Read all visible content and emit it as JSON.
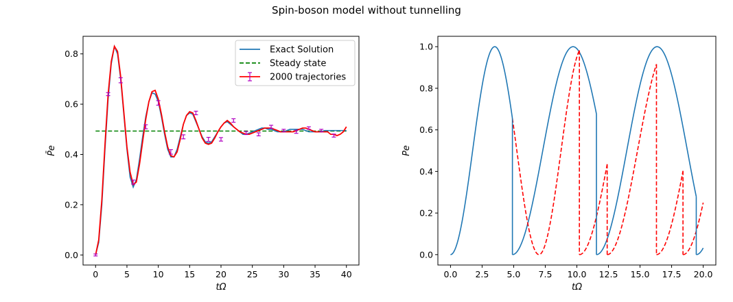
{
  "figure": {
    "title": "Spin-boson model without tunnelling"
  },
  "chart_data": [
    {
      "type": "line",
      "xlabel": "tΩ",
      "ylabel": "P̄e",
      "xlim": [
        -2,
        42
      ],
      "ylim": [
        -0.04,
        0.87
      ],
      "xticks": [
        0,
        5,
        10,
        15,
        20,
        25,
        30,
        35,
        40
      ],
      "yticks": [
        0.0,
        0.2,
        0.4,
        0.6,
        0.8
      ],
      "grid": false,
      "legend_position": "top-right",
      "series": [
        {
          "name": "Exact Solution",
          "style": "solid",
          "color": "#1f77b4",
          "x": [
            0,
            0.5,
            1,
            1.5,
            2,
            2.5,
            3,
            3.5,
            4,
            4.5,
            5,
            5.5,
            6,
            6.5,
            7,
            7.5,
            8,
            8.5,
            9,
            9.5,
            10,
            10.5,
            11,
            11.5,
            12,
            12.5,
            13,
            13.5,
            14,
            14.5,
            15,
            15.5,
            16,
            16.5,
            17,
            17.5,
            18,
            18.5,
            19,
            19.5,
            20,
            20.5,
            21,
            21.5,
            22,
            22.5,
            23,
            23.5,
            24,
            24.5,
            25,
            25.5,
            26,
            26.5,
            27,
            27.5,
            28,
            28.5,
            29,
            29.5,
            30,
            30.5,
            31,
            31.5,
            32,
            32.5,
            33,
            33.5,
            34,
            34.5,
            35,
            35.5,
            36,
            36.5,
            37,
            37.5,
            38,
            38.5,
            39,
            39.5,
            40
          ],
          "y": [
            0.0,
            0.05,
            0.2,
            0.42,
            0.62,
            0.76,
            0.83,
            0.8,
            0.7,
            0.56,
            0.42,
            0.31,
            0.27,
            0.3,
            0.38,
            0.47,
            0.55,
            0.61,
            0.645,
            0.64,
            0.61,
            0.55,
            0.48,
            0.42,
            0.39,
            0.39,
            0.42,
            0.47,
            0.52,
            0.555,
            0.565,
            0.56,
            0.53,
            0.5,
            0.47,
            0.45,
            0.445,
            0.45,
            0.47,
            0.49,
            0.51,
            0.525,
            0.53,
            0.52,
            0.51,
            0.5,
            0.49,
            0.48,
            0.48,
            0.485,
            0.49,
            0.495,
            0.5,
            0.505,
            0.505,
            0.5,
            0.5,
            0.495,
            0.49,
            0.49,
            0.49,
            0.495,
            0.5,
            0.5,
            0.5,
            0.5,
            0.5,
            0.495,
            0.49,
            0.49,
            0.49,
            0.49,
            0.49,
            0.495,
            0.495,
            0.495,
            0.495,
            0.495,
            0.495,
            0.495,
            0.495
          ]
        },
        {
          "name": "Steady state",
          "style": "dashed",
          "color": "#008000",
          "x": [
            0,
            40
          ],
          "y": [
            0.493,
            0.493
          ]
        },
        {
          "name": "2000 trajectories",
          "style": "solid",
          "color": "#ff0000",
          "errorbar_color": "#b000c0",
          "x": [
            0,
            0.5,
            1,
            1.5,
            2,
            2.5,
            3,
            3.5,
            4,
            4.5,
            5,
            5.5,
            6,
            6.5,
            7,
            7.5,
            8,
            8.5,
            9,
            9.5,
            10,
            10.5,
            11,
            11.5,
            12,
            12.5,
            13,
            13.5,
            14,
            14.5,
            15,
            15.5,
            16,
            16.5,
            17,
            17.5,
            18,
            18.5,
            19,
            19.5,
            20,
            20.5,
            21,
            21.5,
            22,
            22.5,
            23,
            23.5,
            24,
            24.5,
            25,
            25.5,
            26,
            26.5,
            27,
            27.5,
            28,
            28.5,
            29,
            29.5,
            30,
            30.5,
            31,
            31.5,
            32,
            32.5,
            33,
            33.5,
            34,
            34.5,
            35,
            35.5,
            36,
            36.5,
            37,
            37.5,
            38,
            38.5,
            39,
            39.5,
            40
          ],
          "y": [
            0.0,
            0.06,
            0.22,
            0.44,
            0.64,
            0.77,
            0.83,
            0.81,
            0.71,
            0.57,
            0.43,
            0.33,
            0.28,
            0.29,
            0.36,
            0.45,
            0.54,
            0.61,
            0.65,
            0.655,
            0.62,
            0.56,
            0.49,
            0.43,
            0.395,
            0.39,
            0.41,
            0.46,
            0.52,
            0.555,
            0.57,
            0.565,
            0.535,
            0.5,
            0.465,
            0.445,
            0.44,
            0.445,
            0.465,
            0.49,
            0.51,
            0.525,
            0.535,
            0.525,
            0.51,
            0.5,
            0.49,
            0.485,
            0.48,
            0.48,
            0.485,
            0.49,
            0.495,
            0.5,
            0.505,
            0.505,
            0.505,
            0.5,
            0.495,
            0.49,
            0.49,
            0.49,
            0.49,
            0.49,
            0.495,
            0.5,
            0.505,
            0.505,
            0.5,
            0.495,
            0.49,
            0.49,
            0.49,
            0.49,
            0.49,
            0.48,
            0.48,
            0.475,
            0.48,
            0.49,
            0.51
          ],
          "errorbars": {
            "x": [
              0,
              2,
              4,
              6,
              8,
              10,
              12,
              14,
              16,
              18,
              20,
              22,
              24,
              26,
              28,
              30,
              32,
              34,
              36,
              38
            ],
            "y": [
              0.0,
              0.64,
              0.695,
              0.29,
              0.51,
              0.605,
              0.41,
              0.47,
              0.565,
              0.46,
              0.46,
              0.535,
              0.485,
              0.48,
              0.51,
              0.495,
              0.49,
              0.505,
              0.495,
              0.475
            ],
            "err": [
              0.004,
              0.006,
              0.01,
              0.008,
              0.008,
              0.009,
              0.009,
              0.008,
              0.007,
              0.008,
              0.007,
              0.007,
              0.006,
              0.006,
              0.006,
              0.005,
              0.006,
              0.005,
              0.005,
              0.006
            ]
          }
        }
      ]
    },
    {
      "type": "line",
      "xlabel": "tΩ",
      "ylabel": "Pe",
      "xlim": [
        -1,
        21
      ],
      "ylim": [
        -0.05,
        1.05
      ],
      "xticks": [
        0.0,
        2.5,
        5.0,
        7.5,
        10.0,
        12.5,
        15.0,
        17.5,
        20.0
      ],
      "yticks": [
        0.0,
        0.2,
        0.4,
        0.6,
        0.8,
        1.0
      ],
      "grid": false,
      "series": [
        {
          "style": "solid",
          "color": "#1f77b4",
          "segments": [
            {
              "omega": 0.8976,
              "phase": 0.0,
              "x_start": 0.0,
              "x_end": 4.9
            },
            {
              "omega": 0.6545,
              "phase": 4.9,
              "x_start": 4.9,
              "x_end": 11.55
            },
            {
              "omega": 0.6545,
              "phase": 11.55,
              "x_start": 11.55,
              "x_end": 19.45
            },
            {
              "omega": 0.6545,
              "phase": 19.45,
              "x_start": 19.45,
              "x_end": 20.0
            }
          ]
        },
        {
          "style": "dashed",
          "color": "#ff0000",
          "segments": [
            {
              "omega": 0.8976,
              "phase": 0.0,
              "x_start": 4.9,
              "x_end": 10.2
            },
            {
              "omega": 0.6545,
              "phase": 10.2,
              "x_start": 10.2,
              "x_end": 12.4
            },
            {
              "omega": 0.6545,
              "phase": 12.4,
              "x_start": 12.4,
              "x_end": 16.3
            },
            {
              "omega": 0.6545,
              "phase": 16.3,
              "x_start": 16.3,
              "x_end": 18.4
            },
            {
              "omega": 0.6545,
              "phase": 18.4,
              "x_start": 18.4,
              "x_end": 20.0
            }
          ]
        }
      ]
    }
  ]
}
